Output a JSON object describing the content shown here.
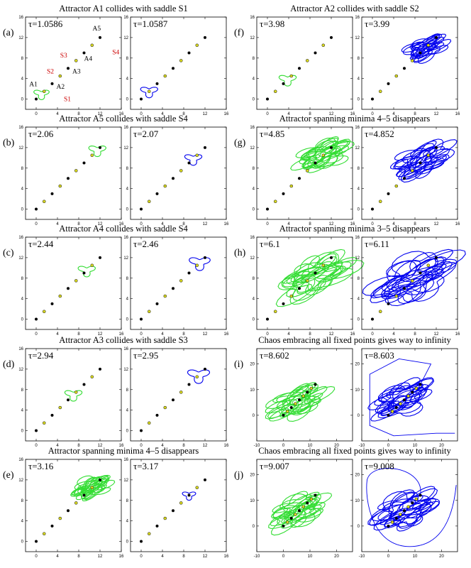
{
  "chart_data": [
    {
      "id": "a",
      "title": "Attractor A1 collides with saddle S1",
      "panel_label": "(a)",
      "type": "scatter",
      "subplots": [
        {
          "tau": "τ=1.0586",
          "xlim": [
            -2,
            16
          ],
          "ylim": [
            -2,
            16
          ],
          "xticks": [
            "0",
            "4",
            "8",
            "12",
            "16"
          ],
          "yticks": [
            "0",
            "4",
            "8",
            "12",
            "16"
          ],
          "attractor": {
            "color": "#33dd33",
            "center": [
              1,
              1
            ],
            "size": 1.6,
            "chaotic": false
          },
          "annotations": [
            {
              "text": "A1",
              "x": -1.3,
              "y": 2.5,
              "color": "#000000"
            },
            {
              "text": "A2",
              "x": 3.8,
              "y": 2.0,
              "color": "#000000"
            },
            {
              "text": "A3",
              "x": 6.8,
              "y": 5.0,
              "color": "#000000"
            },
            {
              "text": "A4",
              "x": 9.0,
              "y": 7.5,
              "color": "#000000"
            },
            {
              "text": "A5",
              "x": 10.6,
              "y": 13.4,
              "color": "#000000"
            },
            {
              "text": "S1",
              "x": 5.2,
              "y": -0.4,
              "color": "#cc0000"
            },
            {
              "text": "S2",
              "x": 2.0,
              "y": 5.0,
              "color": "#cc0000"
            },
            {
              "text": "S3",
              "x": 4.5,
              "y": 8.1,
              "color": "#cc0000"
            },
            {
              "text": "S4",
              "x": 14.3,
              "y": 8.7,
              "color": "#cc0000"
            }
          ]
        },
        {
          "tau": "τ=1.0587",
          "xlim": [
            -2,
            16
          ],
          "ylim": [
            -2,
            16
          ],
          "xticks": [
            "0",
            "4",
            "8",
            "12",
            "16"
          ],
          "yticks": [
            "0",
            "4",
            "8",
            "12",
            "16"
          ],
          "attractor": {
            "color": "#0000ee",
            "center": [
              1.5,
              1.5
            ],
            "size": 1.8,
            "chaotic": false
          }
        }
      ]
    },
    {
      "id": "b",
      "title": "Attractor A5 collides with saddle S4",
      "panel_label": "(b)",
      "type": "scatter",
      "subplots": [
        {
          "tau": "τ=2.06",
          "xlim": [
            -2,
            16
          ],
          "ylim": [
            -2,
            16
          ],
          "xticks": [
            "0",
            "4",
            "8",
            "12",
            "16"
          ],
          "yticks": [
            "0",
            "4",
            "8",
            "12",
            "16"
          ],
          "attractor": {
            "color": "#33dd33",
            "center": [
              11.5,
              11.5
            ],
            "size": 1.8,
            "chaotic": false
          }
        },
        {
          "tau": "τ=2.07",
          "xlim": [
            -2,
            16
          ],
          "ylim": [
            -2,
            16
          ],
          "xticks": [
            "0",
            "4",
            "8",
            "12",
            "16"
          ],
          "yticks": [
            "0",
            "4",
            "8",
            "12",
            "16"
          ],
          "attractor": {
            "color": "#0000ee",
            "center": [
              9.8,
              9.8
            ],
            "size": 1.8,
            "chaotic": false
          }
        }
      ]
    },
    {
      "id": "c",
      "title": "Attractor A4 collides with saddle S4",
      "panel_label": "(c)",
      "type": "scatter",
      "subplots": [
        {
          "tau": "τ=2.44",
          "xlim": [
            -2,
            16
          ],
          "ylim": [
            -2,
            16
          ],
          "xticks": [
            "0",
            "4",
            "8",
            "12",
            "16"
          ],
          "yticks": [
            "0",
            "4",
            "8",
            "12",
            "16"
          ],
          "attractor": {
            "color": "#33dd33",
            "center": [
              9.5,
              9.5
            ],
            "size": 1.8,
            "chaotic": false
          }
        },
        {
          "tau": "τ=2.46",
          "xlim": [
            -2,
            16
          ],
          "ylim": [
            -2,
            16
          ],
          "xticks": [
            "0",
            "4",
            "8",
            "12",
            "16"
          ],
          "yticks": [
            "0",
            "4",
            "8",
            "12",
            "16"
          ],
          "attractor": {
            "color": "#0000ee",
            "center": [
              11,
              11
            ],
            "size": 2.2,
            "chaotic": false
          }
        }
      ]
    },
    {
      "id": "d",
      "title": "Attractor A3 collides with saddle S3",
      "panel_label": "(d)",
      "type": "scatter",
      "subplots": [
        {
          "tau": "τ=2.94",
          "xlim": [
            -2,
            16
          ],
          "ylim": [
            -2,
            16
          ],
          "xticks": [
            "0",
            "4",
            "8",
            "12",
            "16"
          ],
          "yticks": [
            "0",
            "4",
            "8",
            "12",
            "16"
          ],
          "attractor": {
            "color": "#33dd33",
            "center": [
              7,
              7
            ],
            "size": 1.8,
            "chaotic": false
          }
        },
        {
          "tau": "τ=2.95",
          "xlim": [
            -2,
            16
          ],
          "ylim": [
            -2,
            16
          ],
          "xticks": [
            "0",
            "4",
            "8",
            "12",
            "16"
          ],
          "yticks": [
            "0",
            "4",
            "8",
            "12",
            "16"
          ],
          "attractor": {
            "color": "#0000ee",
            "center": [
              10.8,
              10.8
            ],
            "size": 2.3,
            "chaotic": false
          }
        }
      ]
    },
    {
      "id": "e",
      "title": "Attractor spanning minima 4–5 disappears",
      "panel_label": "(e)",
      "type": "scatter",
      "subplots": [
        {
          "tau": "τ=3.16",
          "xlim": [
            -2,
            16
          ],
          "ylim": [
            -2,
            16
          ],
          "xticks": [
            "0",
            "4",
            "8",
            "12",
            "16"
          ],
          "yticks": [
            "0",
            "4",
            "8",
            "12",
            "16"
          ],
          "attractor": {
            "color": "#33dd33",
            "center": [
              10.5,
              10.5
            ],
            "size": 2.3,
            "chaotic": true
          }
        },
        {
          "tau": "τ=3.17",
          "xlim": [
            -2,
            16
          ],
          "ylim": [
            -2,
            16
          ],
          "xticks": [
            "0",
            "4",
            "8",
            "12",
            "16"
          ],
          "yticks": [
            "0",
            "4",
            "8",
            "12",
            "16"
          ],
          "attractor": {
            "color": "#0000ee",
            "center": [
              9,
              9
            ],
            "size": 1.4,
            "chaotic": false
          }
        }
      ]
    },
    {
      "id": "f",
      "title": "Attractor A2 collides with saddle S2",
      "panel_label": "(f)",
      "type": "scatter",
      "subplots": [
        {
          "tau": "τ=3.98",
          "xlim": [
            -2,
            16
          ],
          "ylim": [
            -2,
            16
          ],
          "xticks": [
            "0",
            "4",
            "8",
            "12",
            "16"
          ],
          "yticks": [
            "0",
            "4",
            "8",
            "12",
            "16"
          ],
          "attractor": {
            "color": "#33dd33",
            "center": [
              3.8,
              3.8
            ],
            "size": 1.8,
            "chaotic": false
          }
        },
        {
          "tau": "τ=3.99",
          "xlim": [
            -2,
            16
          ],
          "ylim": [
            -2,
            16
          ],
          "xticks": [
            "0",
            "4",
            "8",
            "12",
            "16"
          ],
          "yticks": [
            "0",
            "4",
            "8",
            "12",
            "16"
          ],
          "attractor": {
            "color": "#0000ee",
            "center": [
              10,
              10
            ],
            "size": 2.4,
            "chaotic": true
          }
        }
      ]
    },
    {
      "id": "g",
      "title": "Attractor spanning minima 4–5 disappears",
      "panel_label": "(g)",
      "type": "scatter",
      "subplots": [
        {
          "tau": "τ=4.85",
          "xlim": [
            -2,
            16
          ],
          "ylim": [
            -2,
            16
          ],
          "xticks": [
            "0",
            "4",
            "8",
            "12",
            "16"
          ],
          "yticks": [
            "0",
            "4",
            "8",
            "12",
            "16"
          ],
          "attractor": {
            "color": "#33dd33",
            "center": [
              10.5,
              10.5
            ],
            "size": 3.0,
            "chaotic": true
          }
        },
        {
          "tau": "τ=4.852",
          "xlim": [
            -2,
            16
          ],
          "ylim": [
            -2,
            16
          ],
          "xticks": [
            "0",
            "4",
            "8",
            "12",
            "16"
          ],
          "yticks": [
            "0",
            "4",
            "8",
            "12",
            "16"
          ],
          "attractor": {
            "color": "#0000ee",
            "center": [
              9.5,
              9.5
            ],
            "size": 3.5,
            "chaotic": true
          }
        }
      ]
    },
    {
      "id": "h",
      "title": "Attractor spanning minima 3–5 disappears",
      "panel_label": "(h)",
      "type": "scatter",
      "subplots": [
        {
          "tau": "τ=6.1",
          "xlim": [
            -2,
            16
          ],
          "ylim": [
            -2,
            16
          ],
          "xticks": [
            "0",
            "4",
            "8",
            "12",
            "16"
          ],
          "yticks": [
            "0",
            "4",
            "8",
            "12",
            "16"
          ],
          "attractor": {
            "color": "#33dd33",
            "center": [
              9,
              9
            ],
            "size": 4.5,
            "chaotic": true
          }
        },
        {
          "tau": "τ=6.11",
          "xlim": [
            -2,
            16
          ],
          "ylim": [
            -2,
            16
          ],
          "xticks": [
            "0",
            "4",
            "8",
            "12",
            "16"
          ],
          "yticks": [
            "0",
            "4",
            "8",
            "12",
            "16"
          ],
          "attractor": {
            "color": "#0000ee",
            "center": [
              8,
              8
            ],
            "size": 5.0,
            "chaotic": true
          }
        }
      ]
    },
    {
      "id": "i",
      "title": "Chaos embracing all fixed points gives way to infinity",
      "panel_label": "(i)",
      "type": "scatter",
      "subplots": [
        {
          "tau": "τ=8.602",
          "xlim": [
            -10,
            26
          ],
          "ylim": [
            -10,
            26
          ],
          "xticks": [
            "-10",
            "0",
            "10",
            "20"
          ],
          "yticks": [
            "0",
            "10",
            "20"
          ],
          "attractor": {
            "color": "#33dd33",
            "center": [
              6,
              6
            ],
            "size": 7,
            "chaotic": true
          }
        },
        {
          "tau": "τ=8.603",
          "xlim": [
            -10,
            26
          ],
          "ylim": [
            -10,
            26
          ],
          "xticks": [
            "-10",
            "0",
            "10",
            "20"
          ],
          "yticks": [
            "0",
            "10",
            "20"
          ],
          "attractor": {
            "color": "#0000ee",
            "center": [
              6,
              6
            ],
            "size": 7,
            "chaotic": true
          },
          "escape": "box"
        }
      ]
    },
    {
      "id": "j",
      "title": "Chaos embracing all fixed points gives way to infinity",
      "panel_label": "(j)",
      "type": "scatter",
      "subplots": [
        {
          "tau": "τ=9.007",
          "xlim": [
            -10,
            26
          ],
          "ylim": [
            -10,
            26
          ],
          "xticks": [
            "-10",
            "0",
            "10",
            "20"
          ],
          "yticks": [
            "0",
            "10",
            "20"
          ],
          "attractor": {
            "color": "#33dd33",
            "center": [
              6,
              6
            ],
            "size": 7,
            "chaotic": true
          }
        },
        {
          "tau": "τ=9.008",
          "xlim": [
            -10,
            26
          ],
          "ylim": [
            -10,
            26
          ],
          "xticks": [
            "-10",
            "0",
            "10",
            "20"
          ],
          "yticks": [
            "0",
            "10",
            "20"
          ],
          "attractor": {
            "color": "#0000ee",
            "center": [
              6,
              6
            ],
            "size": 8,
            "chaotic": true
          },
          "escape": "arc"
        }
      ]
    }
  ],
  "fixed_points": {
    "minima": [
      [
        0,
        0
      ],
      [
        3,
        3
      ],
      [
        6,
        6
      ],
      [
        9,
        9
      ],
      [
        12,
        12
      ]
    ],
    "saddles": [
      [
        1.5,
        1.5
      ],
      [
        4.5,
        4.5
      ],
      [
        7.5,
        7.5
      ],
      [
        10.5,
        10.5
      ]
    ],
    "minima_color": "#000000",
    "saddle_color": "#dddd22"
  }
}
